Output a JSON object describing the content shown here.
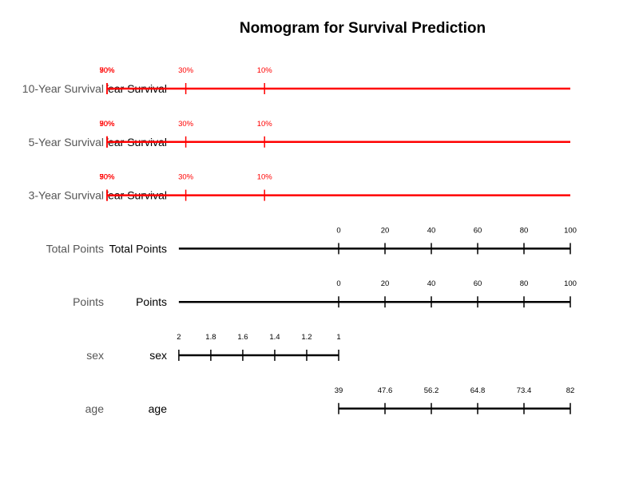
{
  "chart_data": {
    "type": "nomogram",
    "title": "Nomogram for Survival Prediction",
    "colors": {
      "survival": "#ff0000",
      "default": "#000000",
      "outer_label": "#555555"
    },
    "rows": [
      {
        "id": "ten_year",
        "label_outer": "10-Year Survival",
        "label_inner": "10-Year Survival",
        "color": "#ff0000",
        "points_range": [
          -100,
          100
        ],
        "ticks": [
          {
            "label": "90%",
            "points": -100
          },
          {
            "label": "70%",
            "points": -100
          },
          {
            "label": "50%",
            "points": -100
          },
          {
            "label": "30%",
            "points": -66
          },
          {
            "label": "10%",
            "points": -32
          }
        ]
      },
      {
        "id": "five_year",
        "label_outer": "5-Year Survival",
        "label_inner": "5-Year Survival",
        "color": "#ff0000",
        "points_range": [
          -100,
          100
        ],
        "ticks": [
          {
            "label": "90%",
            "points": -100
          },
          {
            "label": "70%",
            "points": -100
          },
          {
            "label": "50%",
            "points": -100
          },
          {
            "label": "30%",
            "points": -66
          },
          {
            "label": "10%",
            "points": -32
          }
        ]
      },
      {
        "id": "three_year",
        "label_outer": "3-Year Survival",
        "label_inner": "3-Year Survival",
        "color": "#ff0000",
        "points_range": [
          -100,
          100
        ],
        "ticks": [
          {
            "label": "90%",
            "points": -100
          },
          {
            "label": "70%",
            "points": -100
          },
          {
            "label": "50%",
            "points": -100
          },
          {
            "label": "30%",
            "points": -66
          },
          {
            "label": "10%",
            "points": -32
          }
        ]
      },
      {
        "id": "total_points",
        "label_outer": "Total Points",
        "label_inner": "Total Points",
        "color": "#000000",
        "points_range": [
          -69,
          100
        ],
        "ticks": [
          {
            "label": "0",
            "points": 0
          },
          {
            "label": "20",
            "points": 20
          },
          {
            "label": "40",
            "points": 40
          },
          {
            "label": "60",
            "points": 60
          },
          {
            "label": "80",
            "points": 80
          },
          {
            "label": "100",
            "points": 100
          }
        ]
      },
      {
        "id": "points",
        "label_outer": "Points",
        "label_inner": "Points",
        "color": "#000000",
        "points_range": [
          -69,
          100
        ],
        "ticks": [
          {
            "label": "0",
            "points": 0
          },
          {
            "label": "20",
            "points": 20
          },
          {
            "label": "40",
            "points": 40
          },
          {
            "label": "60",
            "points": 60
          },
          {
            "label": "80",
            "points": 80
          },
          {
            "label": "100",
            "points": 100
          }
        ]
      },
      {
        "id": "sex",
        "label_outer": "sex",
        "label_inner": "sex",
        "color": "#000000",
        "points_range": [
          -69,
          0
        ],
        "ticks": [
          {
            "label": "2",
            "points": -69
          },
          {
            "label": "1.8",
            "points": -55.2
          },
          {
            "label": "1.6",
            "points": -41.4
          },
          {
            "label": "1.4",
            "points": -27.6
          },
          {
            "label": "1.2",
            "points": -13.8
          },
          {
            "label": "1",
            "points": 0
          }
        ]
      },
      {
        "id": "age",
        "label_outer": "age",
        "label_inner": "age",
        "color": "#000000",
        "points_range": [
          0,
          100
        ],
        "ticks": [
          {
            "label": "39",
            "points": 0
          },
          {
            "label": "47.6",
            "points": 20
          },
          {
            "label": "56.2",
            "points": 40
          },
          {
            "label": "64.8",
            "points": 60
          },
          {
            "label": "73.4",
            "points": 80
          },
          {
            "label": "82",
            "points": 100
          }
        ]
      }
    ]
  }
}
